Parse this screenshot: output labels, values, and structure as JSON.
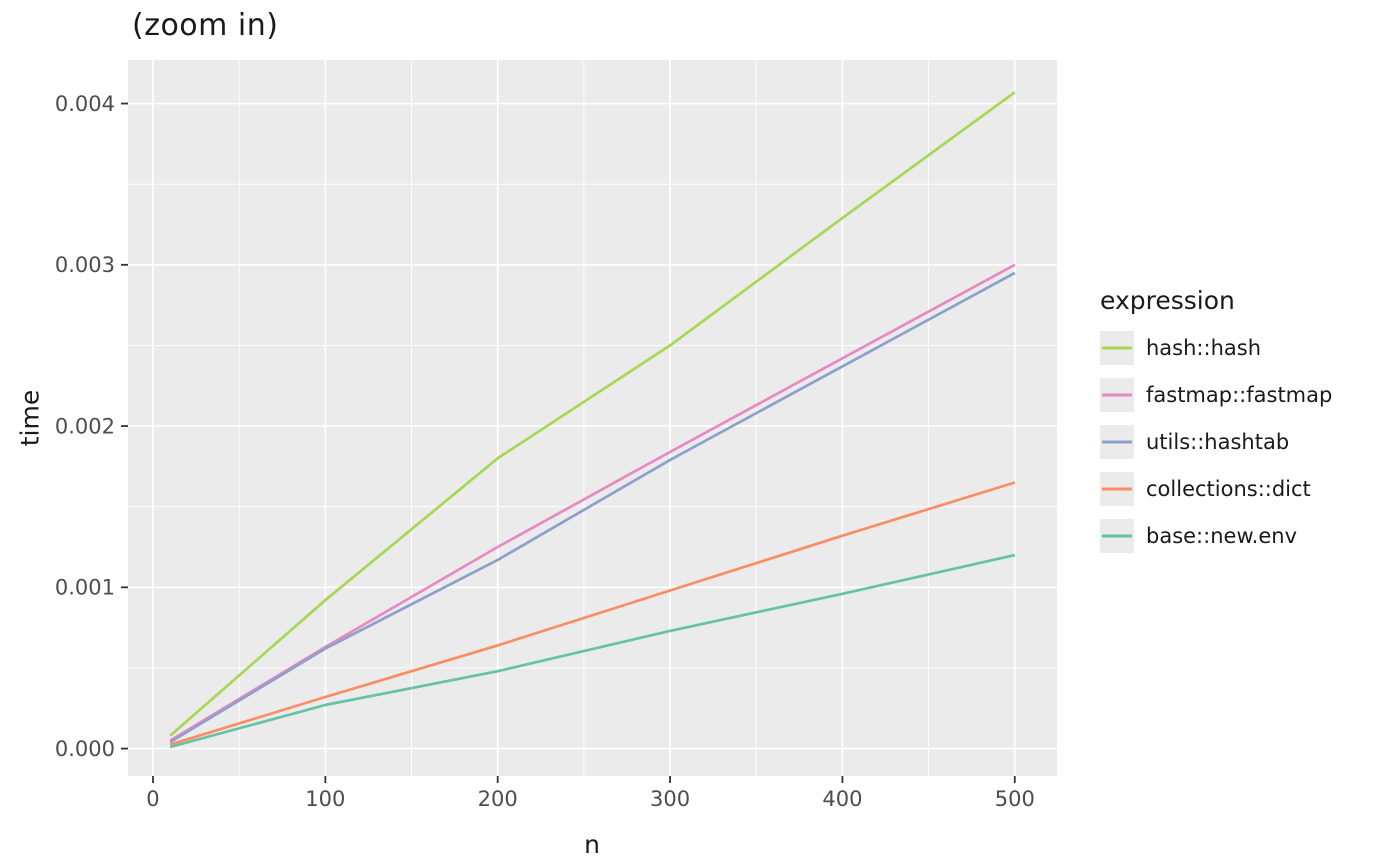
{
  "colors": {
    "panel_background": "#EBEBEB",
    "gridline": "#FFFFFF",
    "tick_text": "#4D4D4D",
    "tick_mark": "#333333",
    "axis_title_text": "#1A1A1A"
  },
  "chart_data": {
    "type": "line",
    "title": "(zoom in)",
    "xlabel": "n",
    "ylabel": "time",
    "legend_title": "expression",
    "legend_position": "right",
    "grid": true,
    "xlim": [
      -14.5,
      524.5
    ],
    "ylim": [
      -0.00017,
      0.00427
    ],
    "x_ticks": {
      "values": [
        0,
        100,
        200,
        300,
        400,
        500
      ],
      "labels": [
        "0",
        "100",
        "200",
        "300",
        "400",
        "500"
      ]
    },
    "y_ticks": {
      "values": [
        0,
        0.001,
        0.002,
        0.003,
        0.004
      ],
      "labels": [
        "0.000",
        "0.001",
        "0.002",
        "0.003",
        "0.004"
      ]
    },
    "x_minor": [
      50,
      150,
      250,
      350,
      450
    ],
    "y_minor": [
      0.0005,
      0.0015,
      0.0025,
      0.0035
    ],
    "x": [
      10,
      100,
      200,
      300,
      400,
      500
    ],
    "series": [
      {
        "name": "hash::hash",
        "color": "#A6D854",
        "values": [
          8e-05,
          0.00092,
          0.0018,
          0.0025,
          0.00329,
          0.00407
        ]
      },
      {
        "name": "fastmap::fastmap",
        "color": "#E78AC3",
        "values": [
          5e-05,
          0.00063,
          0.00125,
          0.00184,
          0.00242,
          0.003
        ]
      },
      {
        "name": "utils::hashtab",
        "color": "#8DA0CB",
        "values": [
          4e-05,
          0.00062,
          0.00117,
          0.00179,
          0.00237,
          0.00295
        ]
      },
      {
        "name": "collections::dict",
        "color": "#FC8D62",
        "values": [
          2.5e-05,
          0.00032,
          0.00064,
          0.00098,
          0.00132,
          0.00165
        ]
      },
      {
        "name": "base::new.env",
        "color": "#66C2A5",
        "values": [
          1e-05,
          0.00027,
          0.00048,
          0.00073,
          0.00096,
          0.0012
        ]
      }
    ]
  }
}
